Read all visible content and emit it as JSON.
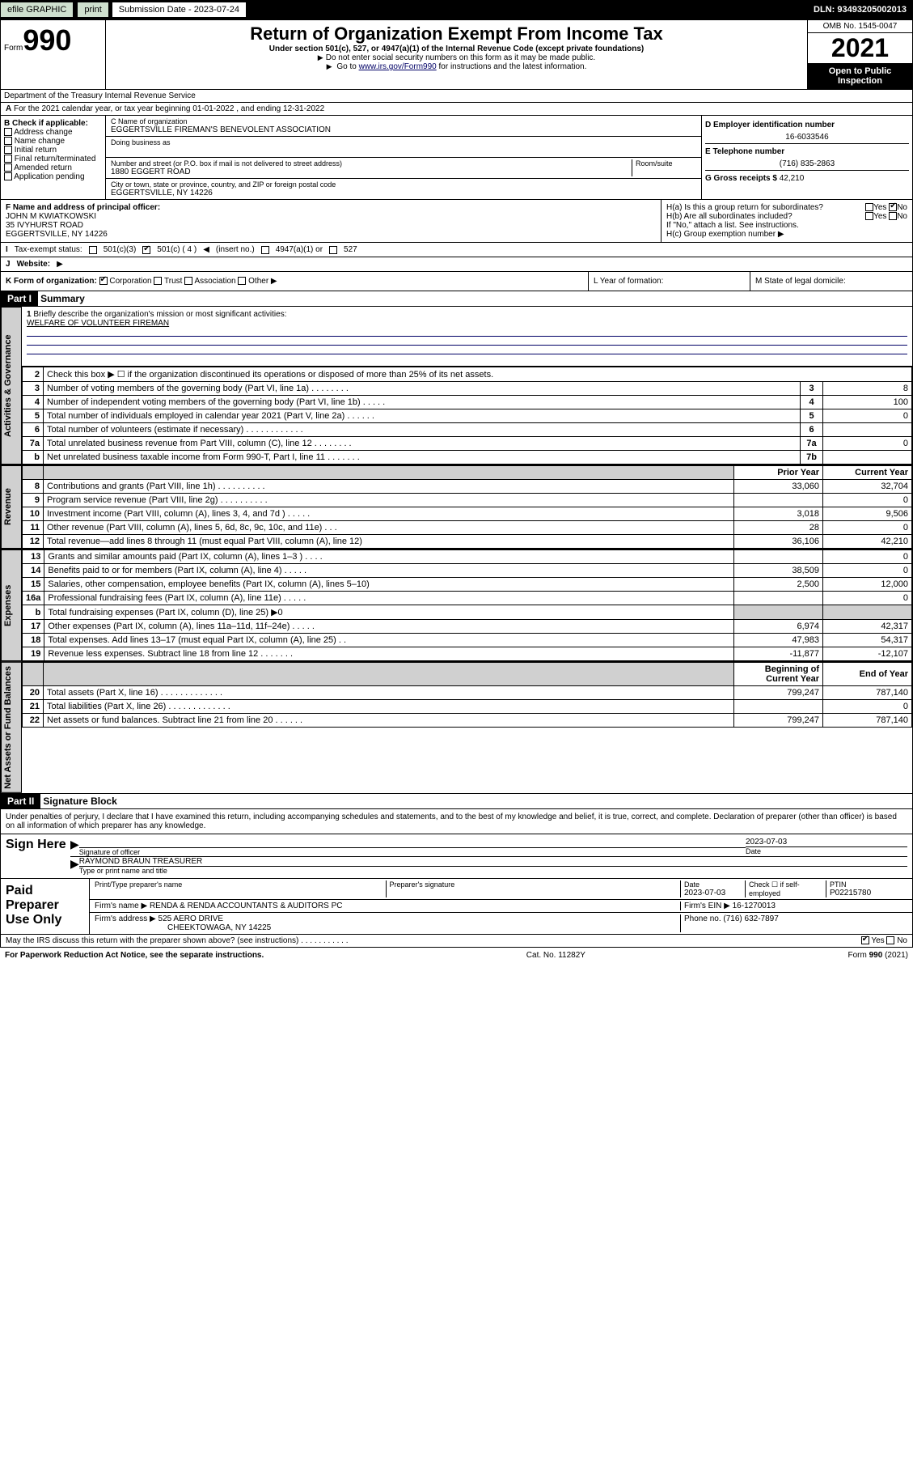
{
  "topbar": {
    "efile": "efile GRAPHIC",
    "print": "print",
    "subdate_label": "Submission Date - 2023-07-24",
    "dln": "DLN: 93493205002013"
  },
  "header": {
    "form_word": "Form",
    "form_num": "990",
    "title": "Return of Organization Exempt From Income Tax",
    "sub": "Under section 501(c), 527, or 4947(a)(1) of the Internal Revenue Code (except private foundations)",
    "note1": "Do not enter social security numbers on this form as it may be made public.",
    "note2_pre": "Go to ",
    "note2_link": "www.irs.gov/Form990",
    "note2_post": " for instructions and the latest information.",
    "omb": "OMB No. 1545-0047",
    "year": "2021",
    "open": "Open to Public Inspection",
    "dept": "Department of the Treasury Internal Revenue Service"
  },
  "rowA": {
    "label_a": "A",
    "text": "For the 2021 calendar year, or tax year beginning 01-01-2022    , and ending 12-31-2022"
  },
  "colB": {
    "hdr": "B Check if applicable:",
    "c1": "Address change",
    "c2": "Name change",
    "c3": "Initial return",
    "c4": "Final return/terminated",
    "c5": "Amended return",
    "c6": "Application pending"
  },
  "colC": {
    "name_label": "C Name of organization",
    "name": "EGGERTSVILLE FIREMAN'S BENEVOLENT ASSOCIATION",
    "dba_label": "Doing business as",
    "street_label": "Number and street (or P.O. box if mail is not delivered to street address)",
    "room_label": "Room/suite",
    "street": "1880 EGGERT ROAD",
    "city_label": "City or town, state or province, country, and ZIP or foreign postal code",
    "city": "EGGERTSVILLE, NY  14226"
  },
  "colD": {
    "ein_label": "D Employer identification number",
    "ein": "16-6033546",
    "tel_label": "E Telephone number",
    "tel": "(716) 835-2863",
    "gross_label": "G Gross receipts $",
    "gross": "42,210"
  },
  "fg": {
    "f_label": "F  Name and address of principal officer:",
    "f_name": "JOHN M KWIATKOWSKI",
    "f_addr1": "35 IVYHURST ROAD",
    "f_addr2": "EGGERTSVILLE, NY  14226",
    "ha": "H(a)  Is this a group return for subordinates?",
    "ha_no": "No",
    "ha_yes": "Yes",
    "hb": "H(b)  Are all subordinates included?",
    "hb_yes": "Yes",
    "hb_no": "No",
    "hb_note": "If \"No,\" attach a list. See instructions.",
    "hc": "H(c)  Group exemption number"
  },
  "rowI": {
    "label": "I",
    "tax_label": "Tax-exempt status:",
    "c1": "501(c)(3)",
    "c2": "501(c) ( 4 )",
    "c2_note": "(insert no.)",
    "c3": "4947(a)(1) or",
    "c4": "527"
  },
  "rowJ": {
    "label": "J",
    "website": "Website:"
  },
  "rowK": {
    "label": "K Form of organization:",
    "c1": "Corporation",
    "c2": "Trust",
    "c3": "Association",
    "c4": "Other",
    "l": "L Year of formation:",
    "m": "M State of legal domicile:"
  },
  "partI": {
    "hdr": "Part I",
    "title": "Summary",
    "line1_label": "1",
    "line1": "Briefly describe the organization's mission or most significant activities:",
    "mission": "WELFARE OF VOLUNTEER FIREMAN"
  },
  "sections": {
    "gov": "Activities & Governance",
    "rev": "Revenue",
    "exp": "Expenses",
    "net": "Net Assets or Fund Balances"
  },
  "govlines": [
    {
      "n": "2",
      "t": "Check this box ▶ ☐  if the organization discontinued its operations or disposed of more than 25% of its net assets.",
      "num": "",
      "v": ""
    },
    {
      "n": "3",
      "t": "Number of voting members of the governing body (Part VI, line 1a)   .    .    .    .    .    .    .    .",
      "num": "3",
      "v": "8"
    },
    {
      "n": "4",
      "t": "Number of independent voting members of the governing body (Part VI, line 1b)   .    .    .    .    .",
      "num": "4",
      "v": "100"
    },
    {
      "n": "5",
      "t": "Total number of individuals employed in calendar year 2021 (Part V, line 2a)   .    .    .    .    .    .",
      "num": "5",
      "v": "0"
    },
    {
      "n": "6",
      "t": "Total number of volunteers (estimate if necessary)   .    .    .    .    .    .    .    .    .    .    .    .",
      "num": "6",
      "v": ""
    },
    {
      "n": "7a",
      "t": "Total unrelated business revenue from Part VIII, column (C), line 12   .    .    .    .    .    .    .    .",
      "num": "7a",
      "v": "0"
    },
    {
      "n": "b",
      "t": "Net unrelated business taxable income from Form 990-T, Part I, line 11   .    .    .    .    .    .    .",
      "num": "7b",
      "v": ""
    }
  ],
  "yearhdr": {
    "prior": "Prior Year",
    "current": "Current Year"
  },
  "revlines": [
    {
      "n": "8",
      "t": "Contributions and grants (Part VIII, line 1h)   .    .    .    .    .    .    .    .    .    .",
      "p": "33,060",
      "c": "32,704"
    },
    {
      "n": "9",
      "t": "Program service revenue (Part VIII, line 2g)   .    .    .    .    .    .    .    .    .    .",
      "p": "",
      "c": "0"
    },
    {
      "n": "10",
      "t": "Investment income (Part VIII, column (A), lines 3, 4, and 7d )   .    .    .    .    .",
      "p": "3,018",
      "c": "9,506"
    },
    {
      "n": "11",
      "t": "Other revenue (Part VIII, column (A), lines 5, 6d, 8c, 9c, 10c, and 11e)   .    .    .",
      "p": "28",
      "c": "0"
    },
    {
      "n": "12",
      "t": "Total revenue—add lines 8 through 11 (must equal Part VIII, column (A), line 12)",
      "p": "36,106",
      "c": "42,210"
    }
  ],
  "explines": [
    {
      "n": "13",
      "t": "Grants and similar amounts paid (Part IX, column (A), lines 1–3 )   .    .    .    .",
      "p": "",
      "c": "0"
    },
    {
      "n": "14",
      "t": "Benefits paid to or for members (Part IX, column (A), line 4)   .    .    .    .    .",
      "p": "38,509",
      "c": "0"
    },
    {
      "n": "15",
      "t": "Salaries, other compensation, employee benefits (Part IX, column (A), lines 5–10)",
      "p": "2,500",
      "c": "12,000"
    },
    {
      "n": "16a",
      "t": "Professional fundraising fees (Part IX, column (A), line 11e)   .    .    .    .    .",
      "p": "",
      "c": "0"
    },
    {
      "n": "b",
      "t": "Total fundraising expenses (Part IX, column (D), line 25)  ▶0",
      "p": "shade",
      "c": "shade"
    },
    {
      "n": "17",
      "t": "Other expenses (Part IX, column (A), lines 11a–11d, 11f–24e)   .    .    .    .    .",
      "p": "6,974",
      "c": "42,317"
    },
    {
      "n": "18",
      "t": "Total expenses. Add lines 13–17 (must equal Part IX, column (A), line 25)   .    .",
      "p": "47,983",
      "c": "54,317"
    },
    {
      "n": "19",
      "t": "Revenue less expenses. Subtract line 18 from line 12   .    .    .    .    .    .    .",
      "p": "-11,877",
      "c": "-12,107"
    }
  ],
  "nethdr": {
    "begin": "Beginning of Current Year",
    "end": "End of Year"
  },
  "netlines": [
    {
      "n": "20",
      "t": "Total assets (Part X, line 16)   .    .    .    .    .    .    .    .    .    .    .    .    .",
      "p": "799,247",
      "c": "787,140"
    },
    {
      "n": "21",
      "t": "Total liabilities (Part X, line 26)   .    .    .    .    .    .    .    .    .    .    .    .    .",
      "p": "",
      "c": "0"
    },
    {
      "n": "22",
      "t": "Net assets or fund balances. Subtract line 21 from line 20   .    .    .    .    .    .",
      "p": "799,247",
      "c": "787,140"
    }
  ],
  "partII": {
    "hdr": "Part II",
    "title": "Signature Block",
    "decl": "Under penalties of perjury, I declare that I have examined this return, including accompanying schedules and statements, and to the best of my knowledge and belief, it is true, correct, and complete. Declaration of preparer (other than officer) is based on all information of which preparer has any knowledge."
  },
  "sign": {
    "here": "Sign Here",
    "sig_label": "Signature of officer",
    "date_label": "Date",
    "date": "2023-07-03",
    "name": "RAYMOND BRAUN  TREASURER",
    "name_label": "Type or print name and title"
  },
  "paid": {
    "title": "Paid Preparer Use Only",
    "prep_name_label": "Print/Type preparer's name",
    "prep_sig_label": "Preparer's signature",
    "prep_date_label": "Date",
    "prep_date": "2023-07-03",
    "check_label": "Check ☐ if self-employed",
    "ptin_label": "PTIN",
    "ptin": "P02215780",
    "firm_name_label": "Firm's name      ▶",
    "firm_name": "RENDA & RENDA ACCOUNTANTS & AUDITORS PC",
    "firm_ein_label": "Firm's EIN ▶",
    "firm_ein": "16-1270013",
    "firm_addr_label": "Firm's address ▶",
    "firm_addr1": "525 AERO DRIVE",
    "firm_addr2": "CHEEKTOWAGA, NY  14225",
    "phone_label": "Phone no.",
    "phone": "(716) 632-7897"
  },
  "discuss": {
    "q": "May the IRS discuss this return with the preparer shown above? (see instructions)   .    .    .    .    .    .    .    .    .    .    .",
    "yes": "Yes",
    "no": "No"
  },
  "footer": {
    "pra": "For Paperwork Reduction Act Notice, see the separate instructions.",
    "cat": "Cat. No. 11282Y",
    "form": "Form 990 (2021)"
  }
}
